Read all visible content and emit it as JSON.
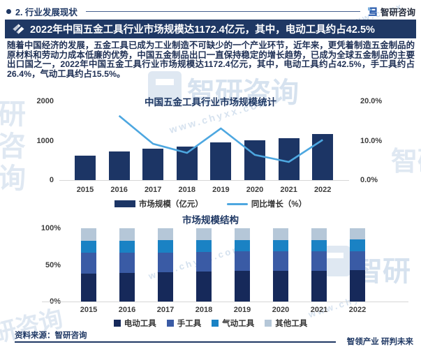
{
  "header": {
    "section_title": "2. 行业发展现状",
    "brand_name": "智研咨询"
  },
  "banner": {
    "title": "2022年中国五金工具行业市场规模达1172.4亿元，其中，电动工具约占42.5%"
  },
  "intro_paragraph": "随着中国经济的发展，五金工具已成为工业制造不可缺少的一个产业环节，近年来，更凭着制造五金制品的原材料和劳动力成本低廉的优势，中国五金制品出口一直保持稳定的增长趋势，已成为全球五金制品的主要出口国之一，2022年中国五金工具行业市场规模达1172.4亿元，其中，电动工具约占42.5%，手工具约占26.4%，气动工具约占15.5%。",
  "chart_data": [
    {
      "type": "bar",
      "subtype": "bar-line-combo",
      "title": "中国五金工具行业市场规模统计",
      "categories": [
        "2015",
        "2016",
        "2017",
        "2018",
        "2019",
        "2020",
        "2021",
        "2022"
      ],
      "series": [
        {
          "name": "市场规模（亿元）",
          "kind": "bar",
          "axis": "left",
          "values": [
            622,
            723,
            790,
            845,
            956,
            1017,
            1064,
            1172.4
          ]
        },
        {
          "name": "同比增长（%）",
          "kind": "line",
          "axis": "right",
          "values": [
            null,
            16.3,
            9.2,
            6.9,
            13.1,
            6.4,
            4.6,
            10.2
          ]
        }
      ],
      "left_axis": {
        "range": [
          0,
          2000
        ],
        "ticks": [
          {
            "label": "2000",
            "value": 2000
          },
          {
            "label": "1000",
            "value": 1000
          },
          {
            "label": "0",
            "value": 0
          }
        ]
      },
      "right_axis": {
        "range": [
          0,
          20
        ],
        "ticks": [
          {
            "label": "20.0%",
            "value": 20
          },
          {
            "label": "10.0%",
            "value": 10
          },
          {
            "label": "0.0%",
            "value": 0
          }
        ]
      },
      "legend_position": "bottom",
      "grid": false
    },
    {
      "type": "bar",
      "subtype": "stacked-percent",
      "title": "市场规模结构",
      "categories": [
        "2015",
        "2016",
        "2017",
        "2018",
        "2019",
        "2020",
        "2021",
        "2022"
      ],
      "series": [
        {
          "name": "电动工具",
          "values": [
            37.8,
            38.6,
            39.6,
            40.8,
            41.5,
            42.0,
            42.3,
            42.5
          ]
        },
        {
          "name": "手工具",
          "values": [
            28.9,
            27.8,
            27.3,
            26.8,
            26.7,
            26.5,
            26.4,
            26.4
          ]
        },
        {
          "name": "气动工具",
          "values": [
            16.5,
            16.8,
            16.6,
            16.2,
            15.8,
            15.6,
            15.5,
            15.5
          ]
        },
        {
          "name": "其他工具",
          "values": [
            16.8,
            16.8,
            16.5,
            16.2,
            16.0,
            15.9,
            15.8,
            15.6
          ]
        }
      ],
      "left_axis": {
        "range": [
          0,
          100
        ],
        "ticks": [
          {
            "label": "100%",
            "value": 100
          },
          {
            "label": "50%",
            "value": 50
          },
          {
            "label": "0%",
            "value": 0
          }
        ]
      },
      "legend_position": "bottom",
      "grid": false
    }
  ],
  "footer": {
    "source": "资料来源：智研咨询",
    "slogan": "智领产业 研判未来"
  },
  "watermarks": {
    "brand": "智研咨询",
    "brand_short": "智研",
    "site": "www.chyxx.com",
    "site_short": "www.chyx",
    "chars": "研咨询"
  },
  "colors": {
    "navy": "#1f3864",
    "bar": "#1c3565",
    "line": "#4da7e0",
    "stack": [
      "#16295a",
      "#3a5ba5",
      "#1a82c4",
      "#b5c7d8"
    ],
    "banner_bg": "#1f3864",
    "body_text": "#1e2f54",
    "tick_text": "#3d3d3d",
    "axis_line": "#d6d6d6"
  }
}
